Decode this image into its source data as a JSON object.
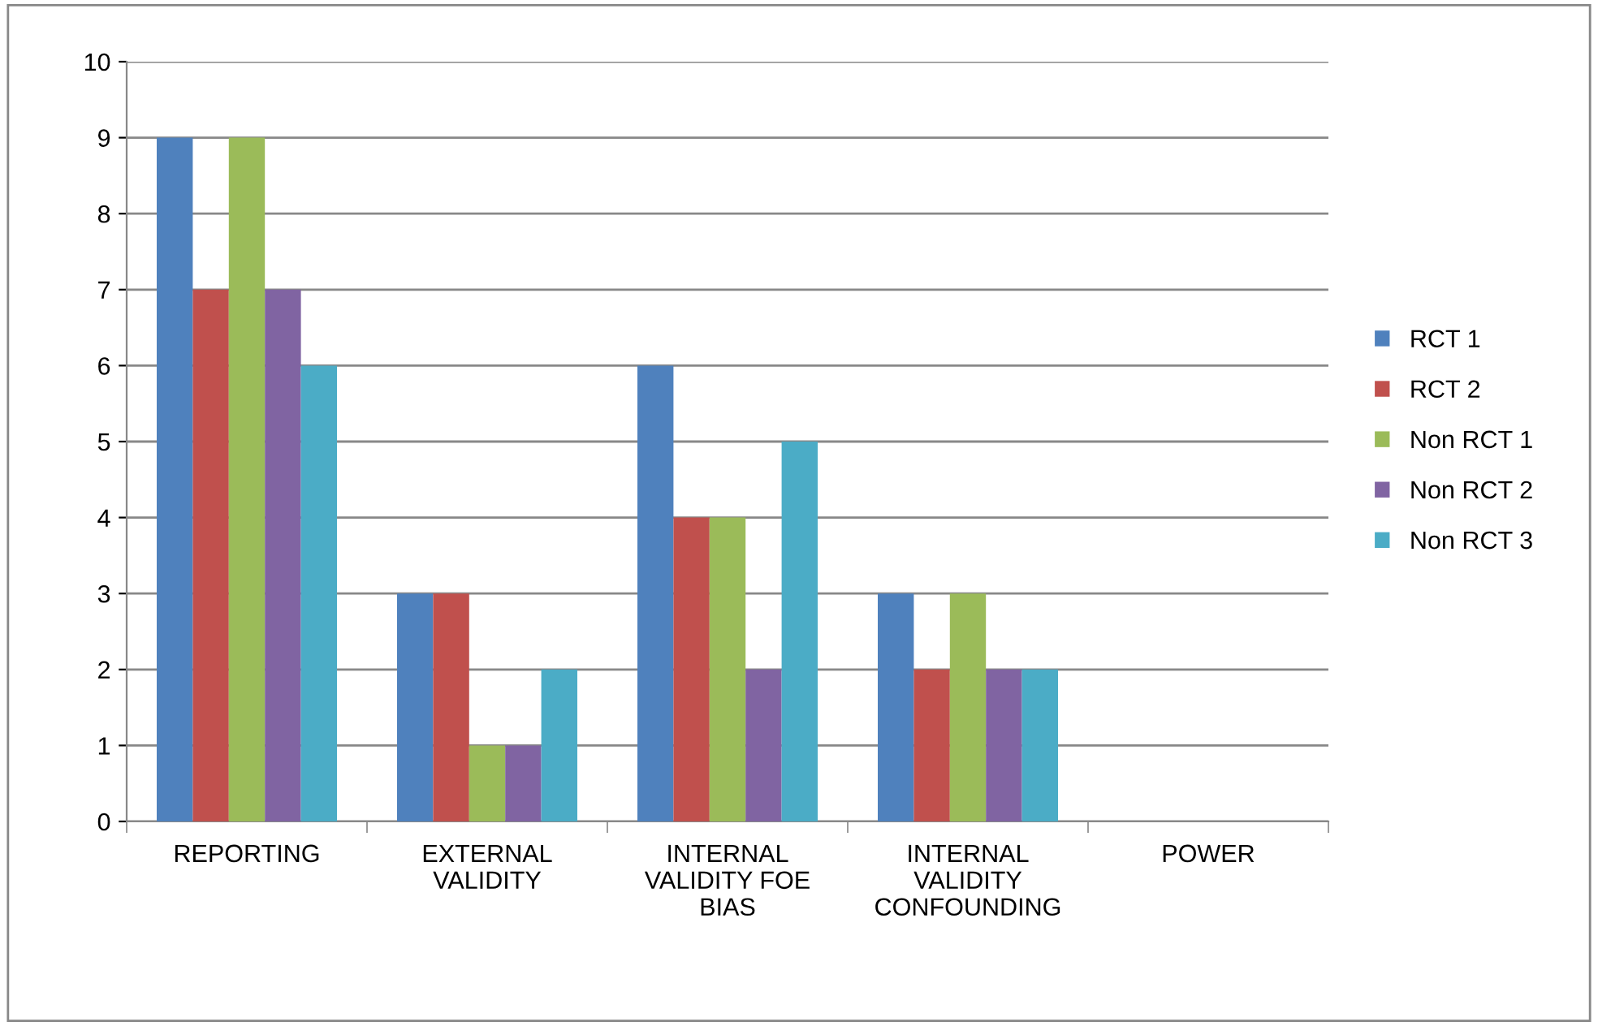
{
  "chart_data": {
    "type": "bar",
    "categories": [
      "REPORTING",
      "EXTERNAL\nVALIDITY",
      "INTERNAL\nVALIDITY FOE\nBIAS",
      "INTERNAL\nVALIDITY\nCONFOUNDING",
      "POWER"
    ],
    "series": [
      {
        "name": "RCT 1",
        "color": "#4f81bd",
        "values": [
          9,
          3,
          6,
          3,
          0
        ]
      },
      {
        "name": "RCT 2",
        "color": "#c0504d",
        "values": [
          7,
          3,
          4,
          2,
          0
        ]
      },
      {
        "name": "Non RCT 1",
        "color": "#9bbb59",
        "values": [
          9,
          1,
          4,
          3,
          0
        ]
      },
      {
        "name": "Non RCT 2",
        "color": "#8064a2",
        "values": [
          7,
          1,
          2,
          2,
          0
        ]
      },
      {
        "name": "Non RCT 3",
        "color": "#4bacc6",
        "values": [
          6,
          2,
          5,
          2,
          0
        ]
      }
    ],
    "ylim": [
      0,
      10
    ],
    "yticks": [
      0,
      1,
      2,
      3,
      4,
      5,
      6,
      7,
      8,
      9,
      10
    ],
    "grid": "y",
    "legend": "right"
  }
}
